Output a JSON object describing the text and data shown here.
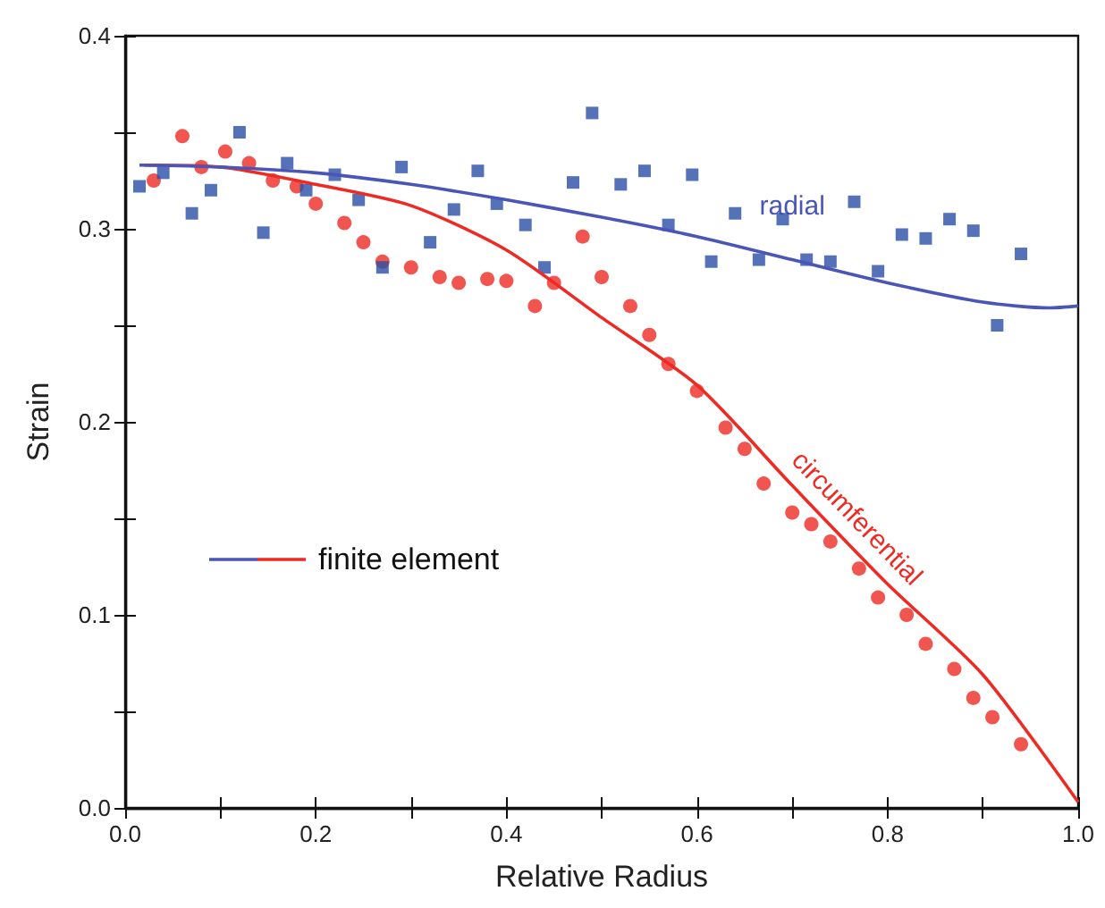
{
  "chart_data": {
    "type": "scatter",
    "xlabel": "Relative Radius",
    "ylabel": "Strain",
    "xlim": [
      0,
      1
    ],
    "xticks": [
      {
        "value": 0,
        "label": "0.0"
      },
      0.2,
      0.4,
      0.6,
      0.8,
      {
        "value": 1,
        "label": "1.0"
      }
    ],
    "ylim": [
      0,
      0.4
    ],
    "yticks": [
      {
        "value": 0,
        "label": "0.0"
      },
      0.1,
      0.2,
      0.3,
      0.4
    ],
    "grid": false,
    "legend": false,
    "annotations": [
      "finite element"
    ],
    "series": [
      {
        "marker": "square",
        "color": "#2a4fa8",
        "x": [
          0.015,
          0.04,
          0.07,
          0.09,
          0.12,
          0.145,
          0.17,
          0.19,
          0.22,
          0.245,
          0.27,
          0.29,
          0.32,
          0.345,
          0.37,
          0.39,
          0.42,
          0.44,
          0.47,
          0.49,
          0.52,
          0.545,
          0.57,
          0.595,
          0.615,
          0.64,
          0.665,
          0.69,
          0.715,
          0.74,
          0.765,
          0.79,
          0.815,
          0.84,
          0.865,
          0.89,
          0.915,
          0.94
        ],
        "values": [
          0.322,
          0.329,
          0.308,
          0.32,
          0.35,
          0.298,
          0.334,
          0.32,
          0.328,
          0.315,
          0.28,
          0.332,
          0.293,
          0.31,
          0.33,
          0.313,
          0.302,
          0.28,
          0.324,
          0.36,
          0.323,
          0.33,
          0.302,
          0.328,
          0.283,
          0.308,
          0.284,
          0.305,
          0.284,
          0.283,
          0.314,
          0.278,
          0.297,
          0.295,
          0.305,
          0.299,
          0.25,
          0.287
        ]
      },
      {
        "marker": "circle",
        "color": "#ee2a24",
        "x": [
          0.03,
          0.06,
          0.08,
          0.105,
          0.13,
          0.155,
          0.18,
          0.2,
          0.23,
          0.25,
          0.27,
          0.3,
          0.33,
          0.35,
          0.38,
          0.4,
          0.43,
          0.45,
          0.48,
          0.5,
          0.53,
          0.55,
          0.57,
          0.6,
          0.63,
          0.65,
          0.67,
          0.7,
          0.72,
          0.74,
          0.77,
          0.79,
          0.82,
          0.84,
          0.87,
          0.89,
          0.91,
          0.94
        ],
        "values": [
          0.325,
          0.348,
          0.332,
          0.34,
          0.334,
          0.325,
          0.322,
          0.313,
          0.303,
          0.293,
          0.283,
          0.28,
          0.275,
          0.272,
          0.274,
          0.273,
          0.26,
          0.272,
          0.296,
          0.275,
          0.26,
          0.245,
          0.23,
          0.216,
          0.197,
          0.186,
          0.168,
          0.153,
          0.147,
          0.138,
          0.124,
          0.109,
          0.1,
          0.085,
          0.072,
          0.057,
          0.047,
          0.033
        ]
      },
      {
        "type": "line",
        "name": "radial",
        "marker": "none",
        "line_style": "solid",
        "color": "#4a55b8",
        "x": [
          0.015,
          0.1,
          0.2,
          0.3,
          0.4,
          0.5,
          0.6,
          0.7,
          0.8,
          0.9,
          0.97,
          1.0
        ],
        "values": [
          0.333,
          0.332,
          0.329,
          0.323,
          0.315,
          0.306,
          0.296,
          0.284,
          0.272,
          0.262,
          0.259,
          0.26
        ]
      },
      {
        "type": "line",
        "name": "circumferential",
        "marker": "none",
        "line_style": "solid",
        "color": "#ee2a24",
        "x": [
          0.02,
          0.1,
          0.2,
          0.3,
          0.4,
          0.5,
          0.6,
          0.7,
          0.8,
          0.9,
          1.0
        ],
        "values": [
          0.333,
          0.332,
          0.323,
          0.312,
          0.289,
          0.254,
          0.219,
          0.167,
          0.116,
          0.069,
          0.003
        ]
      }
    ]
  }
}
